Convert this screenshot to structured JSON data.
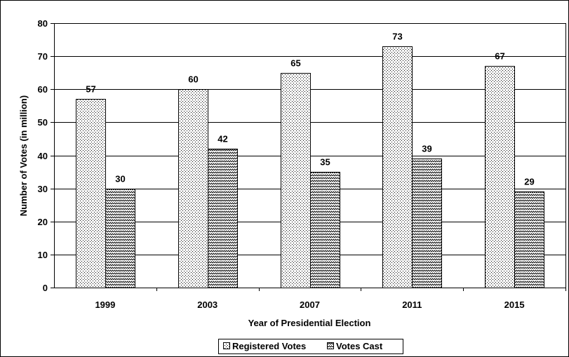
{
  "chart_data": {
    "type": "bar",
    "title": "",
    "xlabel": "Year of Presidential Election",
    "ylabel": "Number of Votes (in million)",
    "ylim": [
      0,
      80
    ],
    "yticks": [
      0,
      10,
      20,
      30,
      40,
      50,
      60,
      70,
      80
    ],
    "grid": true,
    "legend_position": "bottom",
    "categories": [
      "1999",
      "2003",
      "2007",
      "2011",
      "2015"
    ],
    "series": [
      {
        "name": "Registered Votes",
        "values": [
          57,
          60,
          65,
          73,
          67
        ],
        "pattern": "dots"
      },
      {
        "name": "Votes Cast",
        "values": [
          30,
          42,
          35,
          39,
          29
        ],
        "pattern": "zigzag"
      }
    ]
  }
}
